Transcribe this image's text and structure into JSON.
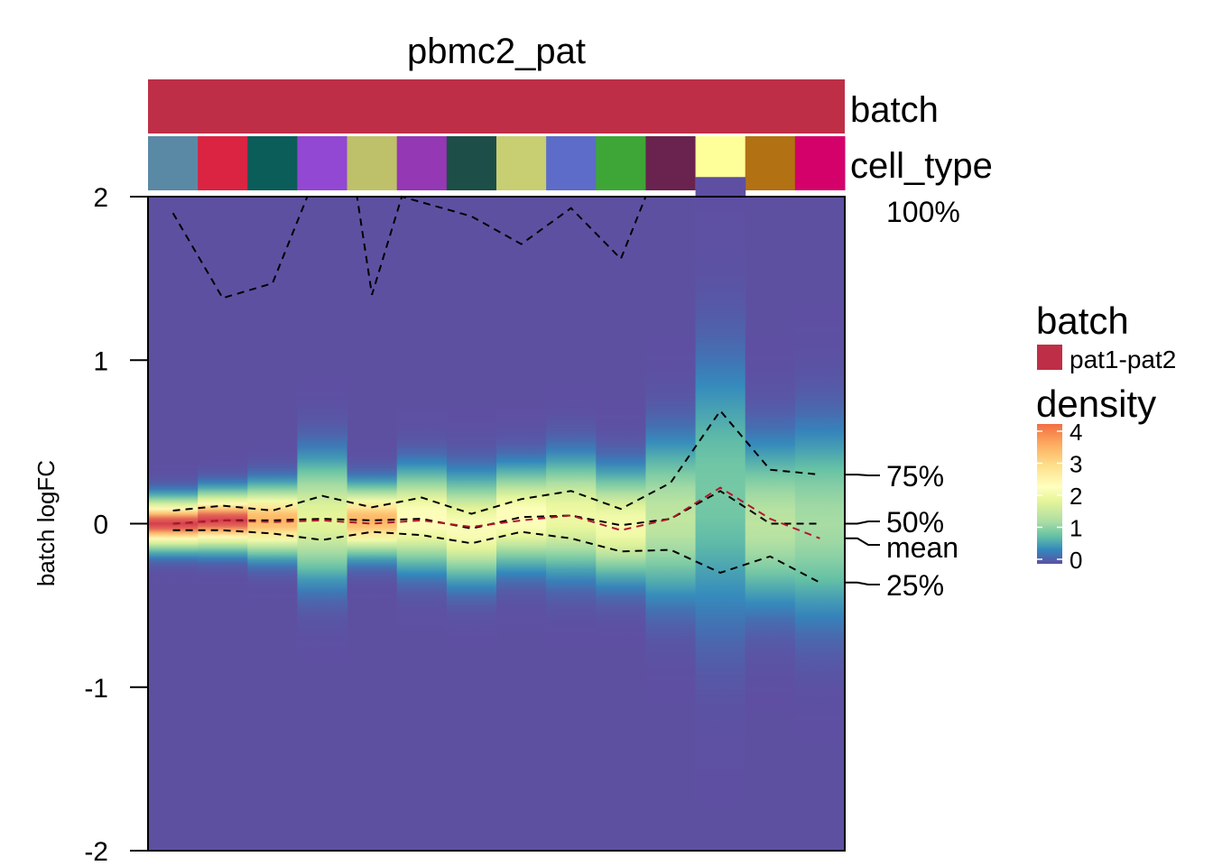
{
  "chart_data": {
    "type": "heatmap",
    "title": "pbmc2_pat",
    "ylabel": "batch logFC",
    "ylim": [
      -2,
      2
    ],
    "yticks": [
      "2",
      "1",
      "0",
      "-1",
      "-2"
    ],
    "ytick_values": [
      2,
      1,
      0,
      -1,
      -2
    ],
    "annotations": {
      "batch": {
        "label": "batch",
        "color": "#BE2F47",
        "value": "pat1-pat2"
      },
      "cell_type": {
        "label": "cell_type",
        "colors": [
          "#5A89A5",
          "#DA2442",
          "#0A5D59",
          "#9248D2",
          "#BFC06A",
          "#9438B3",
          "#1E4E48",
          "#C8CE72",
          "#5D6CC8",
          "#3EA637",
          "#6A224F",
          "#FFFF99",
          "#B27113",
          "#D4016A"
        ]
      }
    },
    "series": [
      {
        "values": [
          1.9,
          1.38,
          1.47,
          2.3,
          2.3,
          1.4,
          2.3,
          1.88,
          1.71,
          1.93,
          1.62,
          2.2,
          2.3,
          2.3,
          2.3
        ],
        "x": [
          0.5,
          1.5,
          2.5,
          3.2,
          4.2,
          4.5,
          5.1,
          6.5,
          7.5,
          8.5,
          9.5,
          10.0,
          11.0,
          12.0,
          13.5
        ]
      },
      {
        "name": "75%",
        "values": [
          0.08,
          0.11,
          0.08,
          0.17,
          0.1,
          0.16,
          0.06,
          0.15,
          0.2,
          0.09,
          0.25,
          0.69,
          0.33,
          0.3
        ]
      },
      {
        "name": "50%",
        "values": [
          0.0,
          0.02,
          0.02,
          0.03,
          0.02,
          0.03,
          -0.03,
          0.04,
          0.05,
          -0.01,
          0.03,
          0.2,
          0.0,
          0.0
        ]
      },
      {
        "name": "mean",
        "values": [
          0.0,
          0.02,
          0.01,
          0.02,
          0.0,
          0.02,
          -0.02,
          0.02,
          0.05,
          -0.04,
          0.03,
          0.22,
          0.03,
          -0.09
        ]
      },
      {
        "name": "25%",
        "values": [
          -0.04,
          -0.04,
          -0.06,
          -0.1,
          -0.05,
          -0.07,
          -0.12,
          -0.05,
          -0.09,
          -0.17,
          -0.16,
          -0.3,
          -0.2,
          -0.36
        ]
      }
    ],
    "line_labels": [
      "100%",
      "75%",
      "50%",
      "mean",
      "25%"
    ],
    "density_spread": [
      0.09,
      0.1,
      0.12,
      0.22,
      0.12,
      0.17,
      0.18,
      0.17,
      0.2,
      0.19,
      0.28,
      0.48,
      0.29,
      0.34
    ],
    "legend": {
      "batch_title": "batch",
      "batch_entry": "pat1-pat2",
      "density_title": "density",
      "density_ticks": [
        "4",
        "3",
        "2",
        "1",
        "0"
      ],
      "density_range": [
        0,
        4
      ]
    },
    "colors": {
      "background": "#5E50A1",
      "mean_line": "#B2182B",
      "quantile_lines": "#000000"
    }
  }
}
